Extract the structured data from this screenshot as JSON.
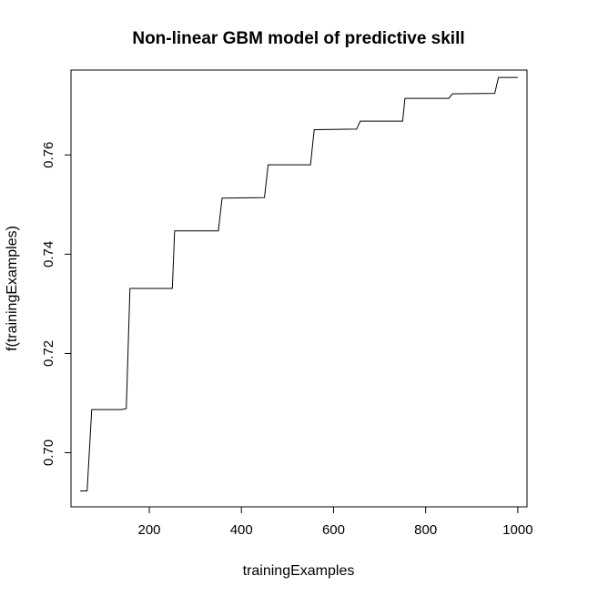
{
  "chart_data": {
    "type": "line",
    "title": "Non-linear GBM model of predictive skill",
    "xlabel": "trainingExamples",
    "ylabel": "f(trainingExamples)",
    "xlim": [
      30,
      1020
    ],
    "ylim": [
      0.6891,
      0.7771
    ],
    "xticks": [
      200,
      400,
      600,
      800,
      1000
    ],
    "yticks": [
      0.7,
      0.72,
      0.74,
      0.76
    ],
    "grid": false,
    "legend": "none",
    "line_color": "#000000",
    "series": [
      {
        "x": [
          50,
          65,
          75,
          140,
          150,
          158,
          250,
          255,
          350,
          358,
          450,
          458,
          550,
          558,
          650,
          658,
          750,
          755,
          850,
          858,
          950,
          958,
          1000
        ],
        "values": [
          0.6923,
          0.6923,
          0.7087,
          0.7087,
          0.7089,
          0.7331,
          0.7331,
          0.7447,
          0.7447,
          0.7513,
          0.7514,
          0.758,
          0.758,
          0.7651,
          0.7652,
          0.7668,
          0.7668,
          0.7714,
          0.7714,
          0.7723,
          0.7724,
          0.7756,
          0.7756
        ]
      }
    ]
  }
}
